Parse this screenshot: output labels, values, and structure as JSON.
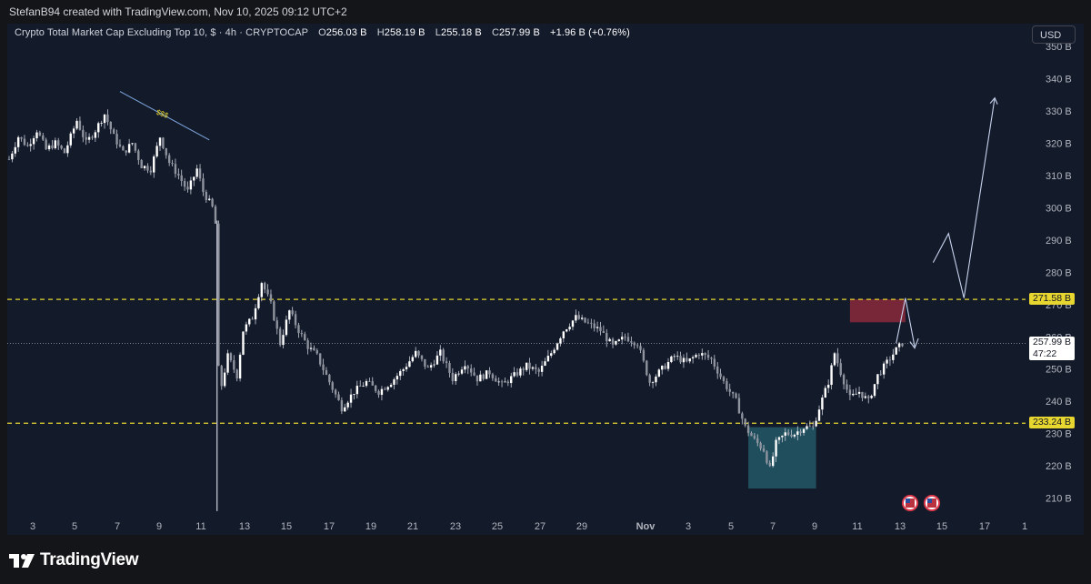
{
  "header": {
    "credit": "StefanB94 created with TradingView.com, Nov 10, 2025 09:12 UTC+2"
  },
  "legend": {
    "title": "Crypto Total Market Cap Excluding Top 10, $ · 4h · CRYPTOCAP",
    "open_label": "O",
    "open": "256.03 B",
    "high_label": "H",
    "high": "258.19 B",
    "low_label": "L",
    "low": "255.18 B",
    "close_label": "C",
    "close": "257.99 B",
    "change": "+1.96 B (+0.76%)"
  },
  "currency_button": "USD",
  "footer": {
    "brand": "TradingView"
  },
  "colors": {
    "background": "#131a2a",
    "candle_body": "#c8ccd6",
    "level_line": "#e8d630",
    "supply_zone": "#8b2a3c",
    "demand_zone": "#2c7a86",
    "trend_line": "#7fa8e0",
    "projection": "#c7d3ee"
  },
  "chart_data": {
    "type": "candlestick",
    "symbol": "CRYPTOCAP",
    "timeframe": "4h",
    "y_unit": "B",
    "ylim": [
      204,
      357
    ],
    "y_ticks": [
      210,
      220,
      230,
      240,
      250,
      260,
      270,
      280,
      290,
      300,
      310,
      320,
      330,
      340,
      350
    ],
    "y_tick_labels": [
      "210 B",
      "220 B",
      "230 B",
      "240 B",
      "250 B",
      "260 B",
      "270 B",
      "280 B",
      "290 B",
      "300 B",
      "310 B",
      "320 B",
      "330 B",
      "340 B",
      "350 B"
    ],
    "x_tick_labels": [
      "3",
      "5",
      "7",
      "9",
      "11",
      "13",
      "15",
      "17",
      "19",
      "21",
      "23",
      "25",
      "27",
      "29",
      "Nov",
      "3",
      "5",
      "7",
      "9",
      "11",
      "13",
      "15",
      "17",
      "1"
    ],
    "levels": [
      {
        "value": 271.58,
        "label": "271.58 B"
      },
      {
        "value": 233.24,
        "label": "233.24 B"
      }
    ],
    "last_price": {
      "value": 257.99,
      "label": "257.99 B",
      "countdown": "47:22"
    },
    "annotation": "$$$",
    "price_path": [
      [
        0,
        315
      ],
      [
        3,
        322
      ],
      [
        6,
        319
      ],
      [
        9,
        324
      ],
      [
        12,
        318
      ],
      [
        15,
        320
      ],
      [
        18,
        317
      ],
      [
        22,
        327
      ],
      [
        25,
        320
      ],
      [
        28,
        324
      ],
      [
        31,
        329
      ],
      [
        34,
        322
      ],
      [
        37,
        317
      ],
      [
        40,
        320
      ],
      [
        43,
        313
      ],
      [
        46,
        312
      ],
      [
        49,
        322
      ],
      [
        52,
        314
      ],
      [
        55,
        310
      ],
      [
        58,
        305
      ],
      [
        61,
        312
      ],
      [
        63,
        305
      ],
      [
        66,
        300
      ],
      [
        67,
        295
      ],
      [
        68,
        250
      ],
      [
        69,
        245
      ],
      [
        71,
        254
      ],
      [
        74,
        248
      ],
      [
        76,
        262
      ],
      [
        79,
        266
      ],
      [
        82,
        277
      ],
      [
        85,
        270
      ],
      [
        88,
        258
      ],
      [
        91,
        268
      ],
      [
        94,
        262
      ],
      [
        97,
        257
      ],
      [
        100,
        254
      ],
      [
        104,
        246
      ],
      [
        108,
        238
      ],
      [
        112,
        243
      ],
      [
        116,
        246
      ],
      [
        120,
        243
      ],
      [
        124,
        246
      ],
      [
        128,
        250
      ],
      [
        132,
        255
      ],
      [
        136,
        250
      ],
      [
        140,
        255
      ],
      [
        144,
        247
      ],
      [
        148,
        252
      ],
      [
        152,
        247
      ],
      [
        156,
        249
      ],
      [
        160,
        245
      ],
      [
        164,
        248
      ],
      [
        168,
        251
      ],
      [
        172,
        249
      ],
      [
        176,
        255
      ],
      [
        180,
        262
      ],
      [
        184,
        266
      ],
      [
        188,
        264
      ],
      [
        192,
        262
      ],
      [
        196,
        257
      ],
      [
        200,
        260
      ],
      [
        204,
        258
      ],
      [
        208,
        246
      ],
      [
        212,
        250
      ],
      [
        216,
        254
      ],
      [
        220,
        252
      ],
      [
        224,
        255
      ],
      [
        228,
        253
      ],
      [
        232,
        246
      ],
      [
        236,
        240
      ],
      [
        239,
        232
      ],
      [
        242,
        228
      ],
      [
        245,
        225
      ],
      [
        247,
        219
      ],
      [
        249,
        227
      ],
      [
        252,
        230
      ],
      [
        255,
        230
      ],
      [
        258,
        232
      ],
      [
        261,
        232
      ],
      [
        263,
        238
      ],
      [
        266,
        246
      ],
      [
        268,
        255
      ],
      [
        270,
        249
      ],
      [
        273,
        241
      ],
      [
        276,
        243
      ],
      [
        279,
        240
      ],
      [
        282,
        248
      ],
      [
        285,
        252
      ],
      [
        288,
        256
      ],
      [
        290,
        258
      ]
    ],
    "projection_path": [
      [
        291,
        272
      ],
      [
        294,
        256
      ],
      [
        300,
        283
      ],
      [
        305,
        292
      ],
      [
        310,
        272
      ],
      [
        320,
        334
      ]
    ],
    "supply_zone": {
      "x_from": 273,
      "x_to": 291,
      "y_from": 264.5,
      "y_to": 271.6
    },
    "demand_zone": {
      "x_from": 240,
      "x_to": 262,
      "y_from": 213,
      "y_to": 232
    },
    "trend_line": [
      [
        36,
        336
      ],
      [
        65,
        321
      ]
    ]
  }
}
